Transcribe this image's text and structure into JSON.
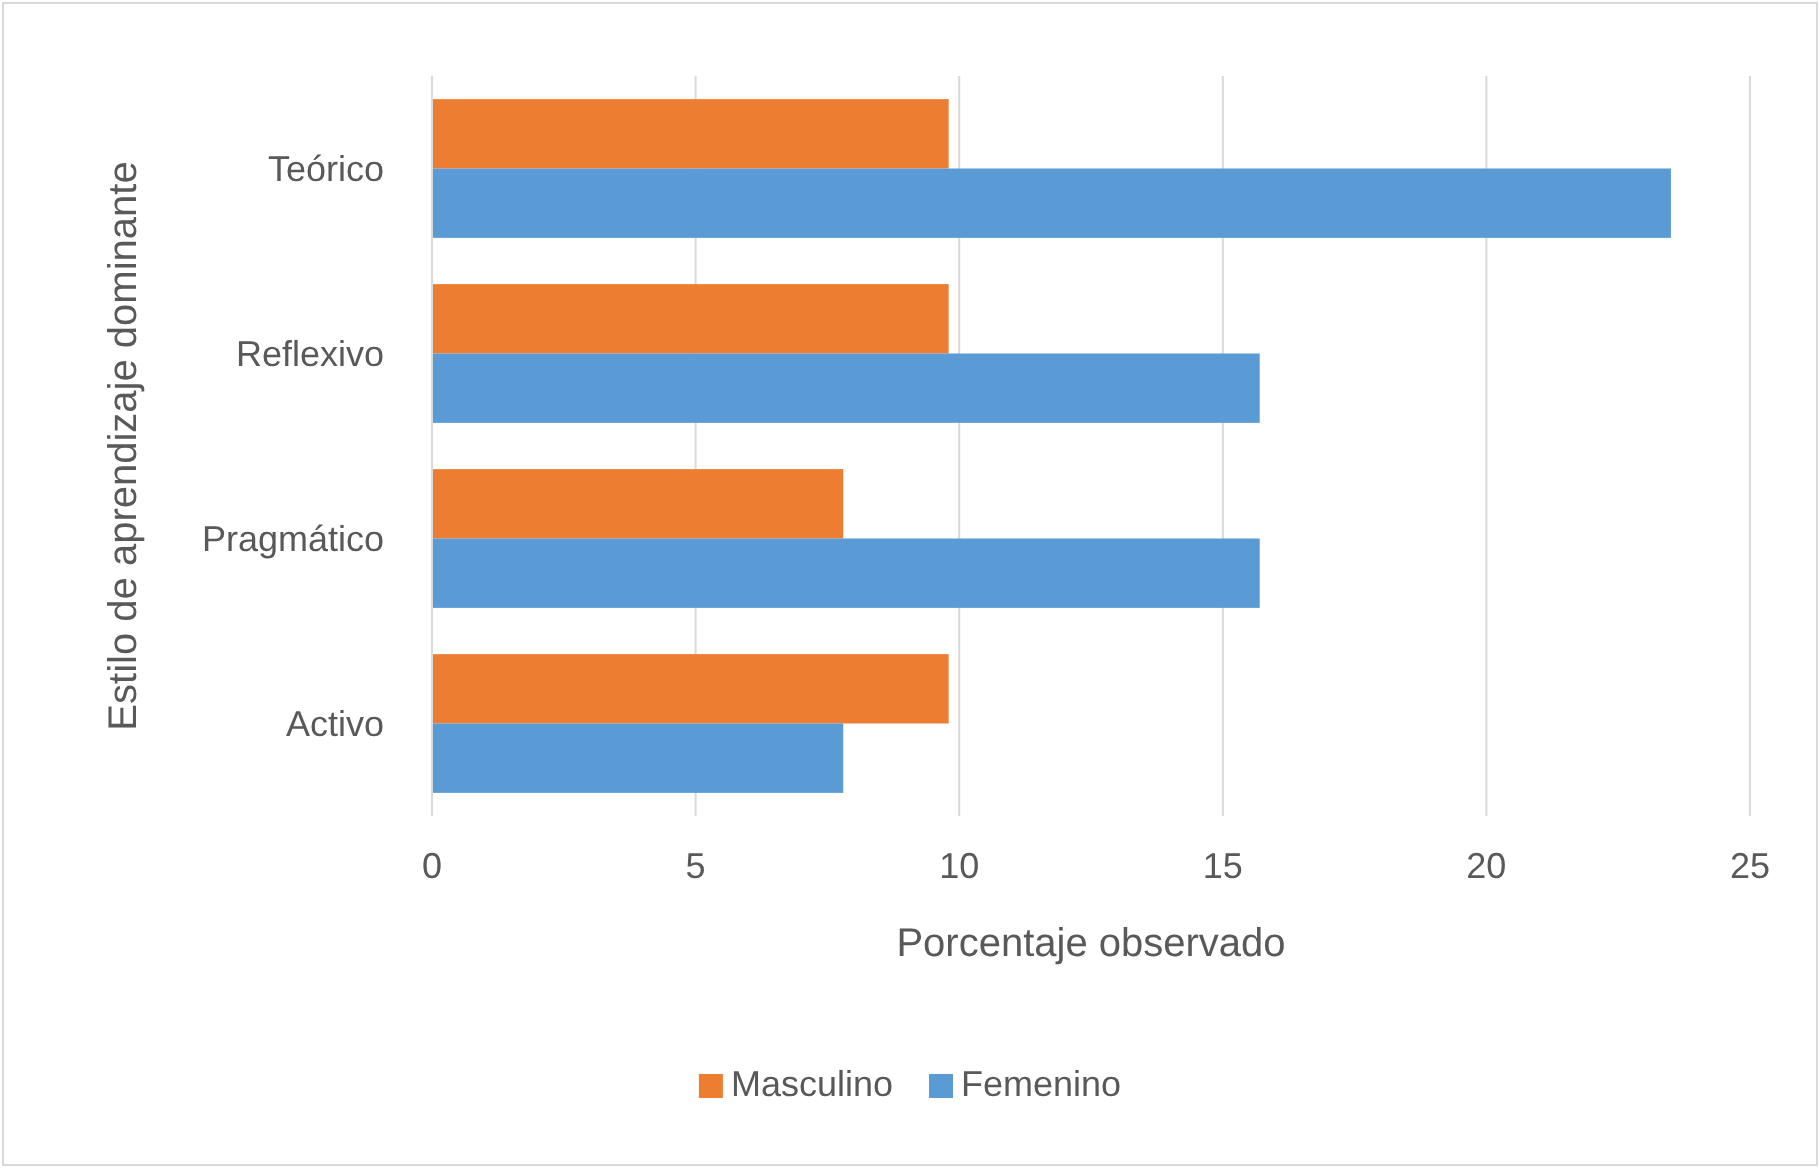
{
  "chart_data": {
    "type": "bar",
    "orientation": "horizontal",
    "xlabel": "Porcentaje observado",
    "ylabel": "Estilo de aprendizaje dominante",
    "categories": [
      "Teórico",
      "Reflexivo",
      "Pragmático",
      "Activo"
    ],
    "series": [
      {
        "name": "Masculino",
        "color": "#ed7d31",
        "values": [
          9.8,
          9.8,
          7.8,
          9.8
        ]
      },
      {
        "name": "Femenino",
        "color": "#5b9bd5",
        "values": [
          23.5,
          15.7,
          15.7,
          7.8
        ]
      }
    ],
    "xlim": [
      0,
      25
    ],
    "xticks": [
      0,
      5,
      10,
      15,
      20,
      25
    ],
    "grid": "x",
    "legend": "bottom"
  }
}
